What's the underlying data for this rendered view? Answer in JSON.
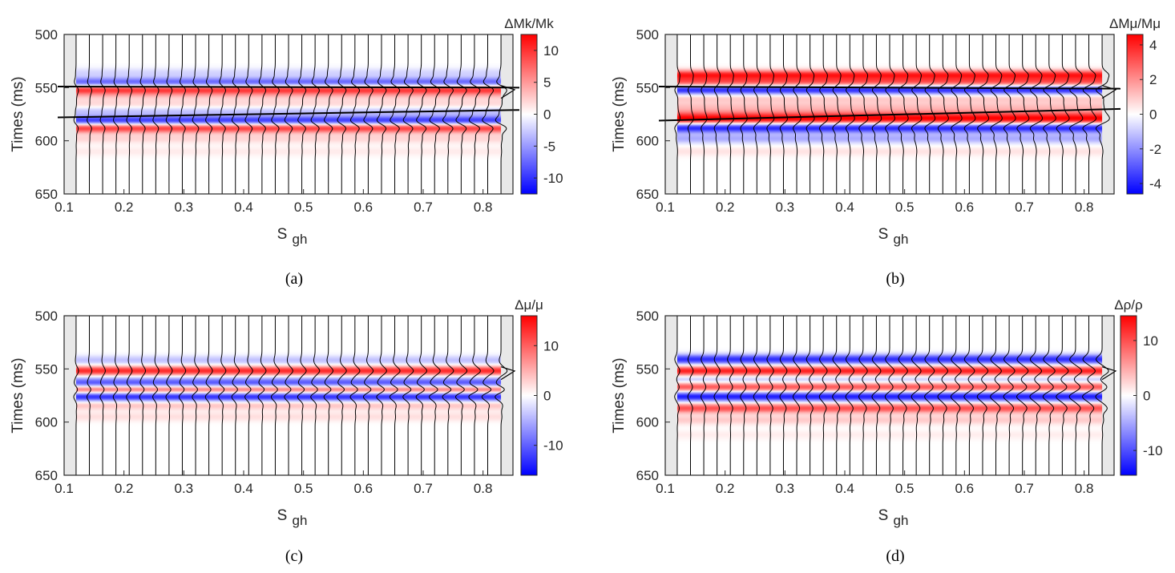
{
  "figure": {
    "captions": [
      "(a)",
      "(b)",
      "(c)",
      "(d)"
    ]
  },
  "chart_data": [
    {
      "type": "heatmap",
      "panel": "a",
      "caption": "(a)",
      "title": "",
      "colorbar_title": "ΔMk/Mk",
      "colorbar_ticks": [
        "10",
        "5",
        "0",
        "-5",
        "-10"
      ],
      "colorbar_tick_values": [
        10,
        5,
        0,
        -5,
        -10
      ],
      "colorbar_range": [
        -12.5,
        12.5
      ],
      "xlabel": "S",
      "xlabel_sub": "gh",
      "ylabel": "Times (ms)",
      "x_ticks": [
        "0.1",
        "0.2",
        "0.3",
        "0.4",
        "0.5",
        "0.6",
        "0.7",
        "0.8"
      ],
      "x_tick_values": [
        0.1,
        0.2,
        0.3,
        0.4,
        0.5,
        0.6,
        0.7,
        0.8
      ],
      "y_ticks": [
        "500",
        "550",
        "600",
        "650"
      ],
      "y_tick_values": [
        500,
        550,
        600,
        650
      ],
      "xlim": [
        0.1,
        0.85
      ],
      "ylim": [
        500,
        650
      ],
      "trace_count": 33,
      "data_x_range": [
        0.12,
        0.83
      ],
      "bands": [
        {
          "t": 536,
          "amp": -2
        },
        {
          "t": 545,
          "amp": -8
        },
        {
          "t": 552,
          "amp": 10
        },
        {
          "t": 558,
          "amp": 2
        },
        {
          "t": 566,
          "amp": 2
        },
        {
          "t": 572,
          "amp": -3
        },
        {
          "t": 581,
          "amp": -10
        },
        {
          "t": 588,
          "amp": 10
        },
        {
          "t": 598,
          "amp": 2
        },
        {
          "t": 610,
          "amp": 1
        }
      ],
      "horizon_lines": [
        {
          "t_start": 549,
          "t_end": 550
        },
        {
          "t_start": 578,
          "t_end": 571
        }
      ]
    },
    {
      "type": "heatmap",
      "panel": "b",
      "caption": "(b)",
      "title": "",
      "colorbar_title": "ΔMμ/Mμ",
      "colorbar_ticks": [
        "4",
        "2",
        "0",
        "-2",
        "-4"
      ],
      "colorbar_tick_values": [
        4,
        2,
        0,
        -2,
        -4
      ],
      "colorbar_range": [
        -4.6,
        4.6
      ],
      "xlabel": "S",
      "xlabel_sub": "gh",
      "ylabel": "Times (ms)",
      "x_ticks": [
        "0.1",
        "0.2",
        "0.3",
        "0.4",
        "0.5",
        "0.6",
        "0.7",
        "0.8"
      ],
      "x_tick_values": [
        0.1,
        0.2,
        0.3,
        0.4,
        0.5,
        0.6,
        0.7,
        0.8
      ],
      "y_ticks": [
        "500",
        "550",
        "600",
        "650"
      ],
      "y_tick_values": [
        500,
        550,
        600,
        650
      ],
      "xlim": [
        0.1,
        0.85
      ],
      "ylim": [
        500,
        650
      ],
      "trace_count": 33,
      "data_x_range": [
        0.12,
        0.83
      ],
      "bands": [
        {
          "t": 538,
          "amp": 4
        },
        {
          "t": 545,
          "amp": 3
        },
        {
          "t": 552,
          "amp": -4
        },
        {
          "t": 560,
          "amp": 1
        },
        {
          "t": 568,
          "amp": 1
        },
        {
          "t": 575,
          "amp": 2
        },
        {
          "t": 580,
          "amp": 4
        },
        {
          "t": 588,
          "amp": -4
        },
        {
          "t": 598,
          "amp": -1.5
        },
        {
          "t": 610,
          "amp": 0.5
        }
      ],
      "horizon_lines": [
        {
          "t_start": 549,
          "t_end": 551
        },
        {
          "t_start": 581,
          "t_end": 570
        }
      ]
    },
    {
      "type": "heatmap",
      "panel": "c",
      "caption": "(c)",
      "title": "",
      "colorbar_title": "Δμ/μ",
      "colorbar_ticks": [
        "10",
        "0",
        "-10"
      ],
      "colorbar_tick_values": [
        10,
        0,
        -10
      ],
      "colorbar_range": [
        -16,
        16
      ],
      "xlabel": "S",
      "xlabel_sub": "gh",
      "ylabel": "Times (ms)",
      "x_ticks": [
        "0.1",
        "0.2",
        "0.3",
        "0.4",
        "0.5",
        "0.6",
        "0.7",
        "0.8"
      ],
      "x_tick_values": [
        0.1,
        0.2,
        0.3,
        0.4,
        0.5,
        0.6,
        0.7,
        0.8
      ],
      "y_ticks": [
        "500",
        "550",
        "600",
        "650"
      ],
      "y_tick_values": [
        500,
        550,
        600,
        650
      ],
      "xlim": [
        0.1,
        0.85
      ],
      "ylim": [
        500,
        650
      ],
      "trace_count": 33,
      "data_x_range": [
        0.12,
        0.83
      ],
      "bands": [
        {
          "t": 542,
          "amp": -4
        },
        {
          "t": 552,
          "amp": 14
        },
        {
          "t": 558,
          "amp": -3
        },
        {
          "t": 564,
          "amp": -12
        },
        {
          "t": 569,
          "amp": 12
        },
        {
          "t": 576,
          "amp": -14
        },
        {
          "t": 584,
          "amp": 4
        },
        {
          "t": 595,
          "amp": 2
        }
      ],
      "horizon_lines": []
    },
    {
      "type": "heatmap",
      "panel": "d",
      "caption": "(d)",
      "title": "",
      "colorbar_title": "Δρ/ρ",
      "colorbar_ticks": [
        "10",
        "0",
        "-10"
      ],
      "colorbar_tick_values": [
        10,
        0,
        -10
      ],
      "colorbar_range": [
        -14.5,
        14.5
      ],
      "xlabel": "S",
      "xlabel_sub": "gh",
      "ylabel": "Times (ms)",
      "x_ticks": [
        "0.1",
        "0.2",
        "0.3",
        "0.4",
        "0.5",
        "0.6",
        "0.7",
        "0.8"
      ],
      "x_tick_values": [
        0.1,
        0.2,
        0.3,
        0.4,
        0.5,
        0.6,
        0.7,
        0.8
      ],
      "y_ticks": [
        "500",
        "550",
        "600",
        "650"
      ],
      "y_tick_values": [
        500,
        550,
        600,
        650
      ],
      "xlim": [
        0.1,
        0.85
      ],
      "ylim": [
        500,
        650
      ],
      "trace_count": 33,
      "data_x_range": [
        0.12,
        0.83
      ],
      "bands": [
        {
          "t": 541,
          "amp": -12
        },
        {
          "t": 552,
          "amp": 13
        },
        {
          "t": 560,
          "amp": -4
        },
        {
          "t": 567,
          "amp": 10
        },
        {
          "t": 576,
          "amp": -13
        },
        {
          "t": 587,
          "amp": 10
        },
        {
          "t": 598,
          "amp": 3
        },
        {
          "t": 612,
          "amp": 1
        }
      ],
      "horizon_lines": []
    }
  ]
}
